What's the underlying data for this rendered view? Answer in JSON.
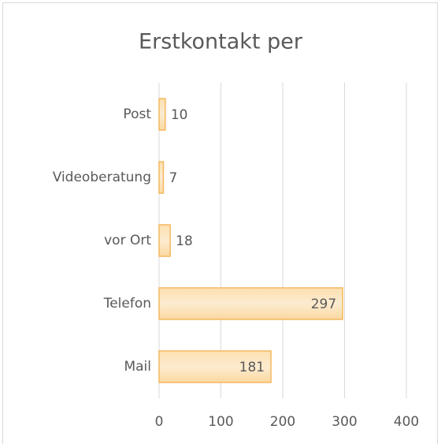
{
  "chart_data": {
    "type": "bar",
    "orientation": "horizontal",
    "title": "Erstkontakt per",
    "categories": [
      "Post",
      "Videoberatung",
      "vor Ort",
      "Telefon",
      "Mail"
    ],
    "values": [
      10,
      7,
      18,
      297,
      181
    ],
    "color": "#fcd9a2",
    "xlim": [
      0,
      400
    ],
    "xticks": [
      0,
      100,
      200,
      300,
      400
    ],
    "grid": true
  }
}
